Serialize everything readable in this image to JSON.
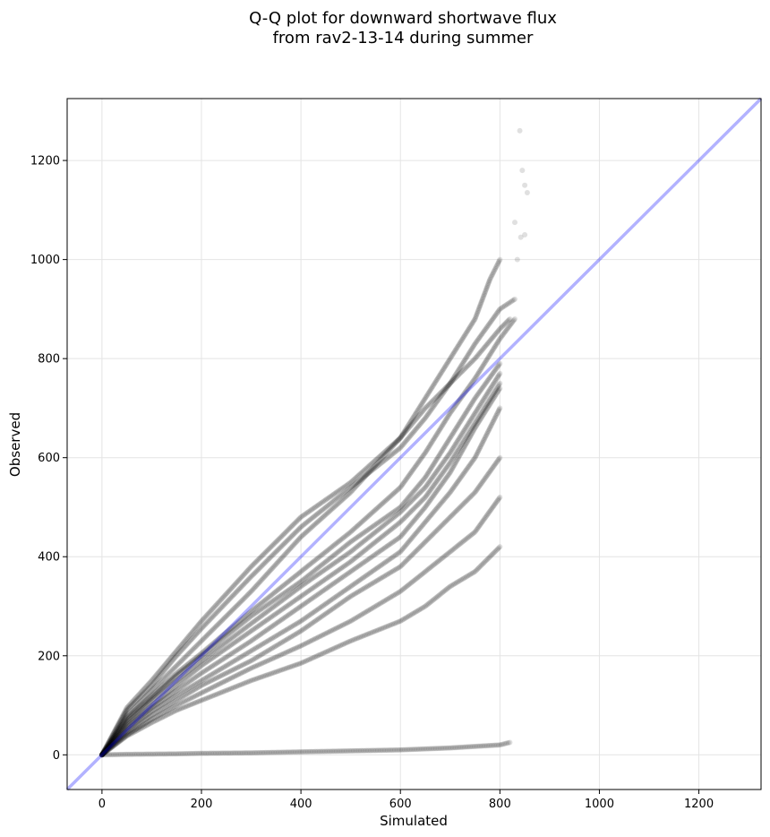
{
  "chart_data": {
    "type": "scatter",
    "title": [
      "Q-Q plot for downward shortwave flux",
      "from rav2-13-14 during summer"
    ],
    "xlabel": "Simulated",
    "ylabel": "Observed",
    "xlim": [
      -70,
      1325
    ],
    "ylim": [
      -70,
      1325
    ],
    "xticks": [
      0,
      200,
      400,
      600,
      800,
      1000,
      1200
    ],
    "yticks": [
      0,
      200,
      400,
      600,
      800,
      1000,
      1200
    ],
    "grid": true,
    "reference_line": {
      "name": "",
      "from": [
        -70,
        -70
      ],
      "to": [
        1325,
        1325
      ],
      "color": "#0000ff",
      "opacity": 0.3
    },
    "point_color": "#000000",
    "point_opacity": 0.12,
    "series": [
      {
        "x": [
          0,
          50,
          100,
          150,
          200,
          300,
          400,
          500,
          600,
          650,
          700,
          750,
          800,
          820
        ],
        "y": [
          0,
          95,
          150,
          210,
          270,
          380,
          480,
          550,
          640,
          700,
          750,
          800,
          860,
          880
        ]
      },
      {
        "x": [
          0,
          50,
          100,
          150,
          200,
          300,
          400,
          500,
          600,
          650,
          700,
          750,
          800,
          830
        ],
        "y": [
          0,
          90,
          140,
          200,
          255,
          360,
          460,
          540,
          620,
          680,
          750,
          830,
          900,
          920
        ]
      },
      {
        "x": [
          0,
          50,
          100,
          150,
          200,
          300,
          400,
          500,
          600,
          650,
          700,
          750,
          780,
          800
        ],
        "y": [
          0,
          80,
          130,
          180,
          230,
          330,
          440,
          530,
          640,
          720,
          800,
          880,
          960,
          1000
        ]
      },
      {
        "x": [
          0,
          50,
          100,
          150,
          200,
          300,
          400,
          500,
          600,
          650,
          700,
          750,
          800,
          830
        ],
        "y": [
          0,
          75,
          120,
          165,
          205,
          290,
          370,
          450,
          540,
          610,
          690,
          760,
          840,
          880
        ]
      },
      {
        "x": [
          0,
          50,
          100,
          150,
          200,
          300,
          400,
          500,
          600,
          650,
          700,
          750,
          800
        ],
        "y": [
          0,
          70,
          115,
          160,
          200,
          280,
          350,
          430,
          500,
          560,
          640,
          720,
          790
        ]
      },
      {
        "x": [
          0,
          50,
          100,
          150,
          200,
          300,
          400,
          500,
          600,
          650,
          700,
          750,
          800
        ],
        "y": [
          0,
          65,
          110,
          150,
          190,
          265,
          340,
          410,
          490,
          540,
          610,
          690,
          770
        ]
      },
      {
        "x": [
          0,
          50,
          100,
          150,
          200,
          300,
          400,
          500,
          600,
          650,
          700,
          750,
          800
        ],
        "y": [
          0,
          60,
          100,
          140,
          180,
          250,
          320,
          390,
          470,
          520,
          590,
          670,
          750
        ]
      },
      {
        "x": [
          0,
          50,
          100,
          150,
          200,
          300,
          400,
          500,
          600,
          650,
          700,
          750,
          800
        ],
        "y": [
          0,
          55,
          95,
          130,
          165,
          230,
          300,
          370,
          440,
          500,
          570,
          660,
          740
        ]
      },
      {
        "x": [
          0,
          50,
          100,
          150,
          200,
          300,
          400,
          500,
          600,
          650,
          700,
          750,
          800
        ],
        "y": [
          0,
          50,
          88,
          120,
          150,
          210,
          270,
          340,
          410,
          470,
          530,
          600,
          700
        ]
      },
      {
        "x": [
          0,
          50,
          100,
          150,
          200,
          300,
          400,
          500,
          600,
          650,
          700,
          750,
          800
        ],
        "y": [
          0,
          45,
          80,
          110,
          140,
          190,
          250,
          320,
          380,
          430,
          480,
          530,
          600
        ]
      },
      {
        "x": [
          0,
          50,
          100,
          150,
          200,
          300,
          400,
          500,
          600,
          650,
          700,
          750,
          800
        ],
        "y": [
          0,
          40,
          72,
          100,
          125,
          175,
          220,
          270,
          330,
          370,
          410,
          450,
          520
        ]
      },
      {
        "x": [
          0,
          50,
          100,
          150,
          200,
          300,
          400,
          500,
          600,
          650,
          700,
          750,
          800
        ],
        "y": [
          0,
          38,
          65,
          90,
          110,
          150,
          185,
          230,
          270,
          300,
          340,
          370,
          420
        ]
      },
      {
        "x": [
          0,
          50,
          100,
          150,
          200,
          300,
          400,
          500,
          600,
          700,
          800,
          820
        ],
        "y": [
          0,
          1,
          1.5,
          2,
          3,
          4,
          6,
          8,
          10,
          14,
          20,
          25
        ]
      }
    ],
    "outliers": [
      {
        "x": 840,
        "y": 1260
      },
      {
        "x": 845,
        "y": 1180
      },
      {
        "x": 850,
        "y": 1150
      },
      {
        "x": 855,
        "y": 1135
      },
      {
        "x": 842,
        "y": 1045
      },
      {
        "x": 850,
        "y": 1050
      },
      {
        "x": 835,
        "y": 1000
      },
      {
        "x": 830,
        "y": 1075
      }
    ]
  }
}
